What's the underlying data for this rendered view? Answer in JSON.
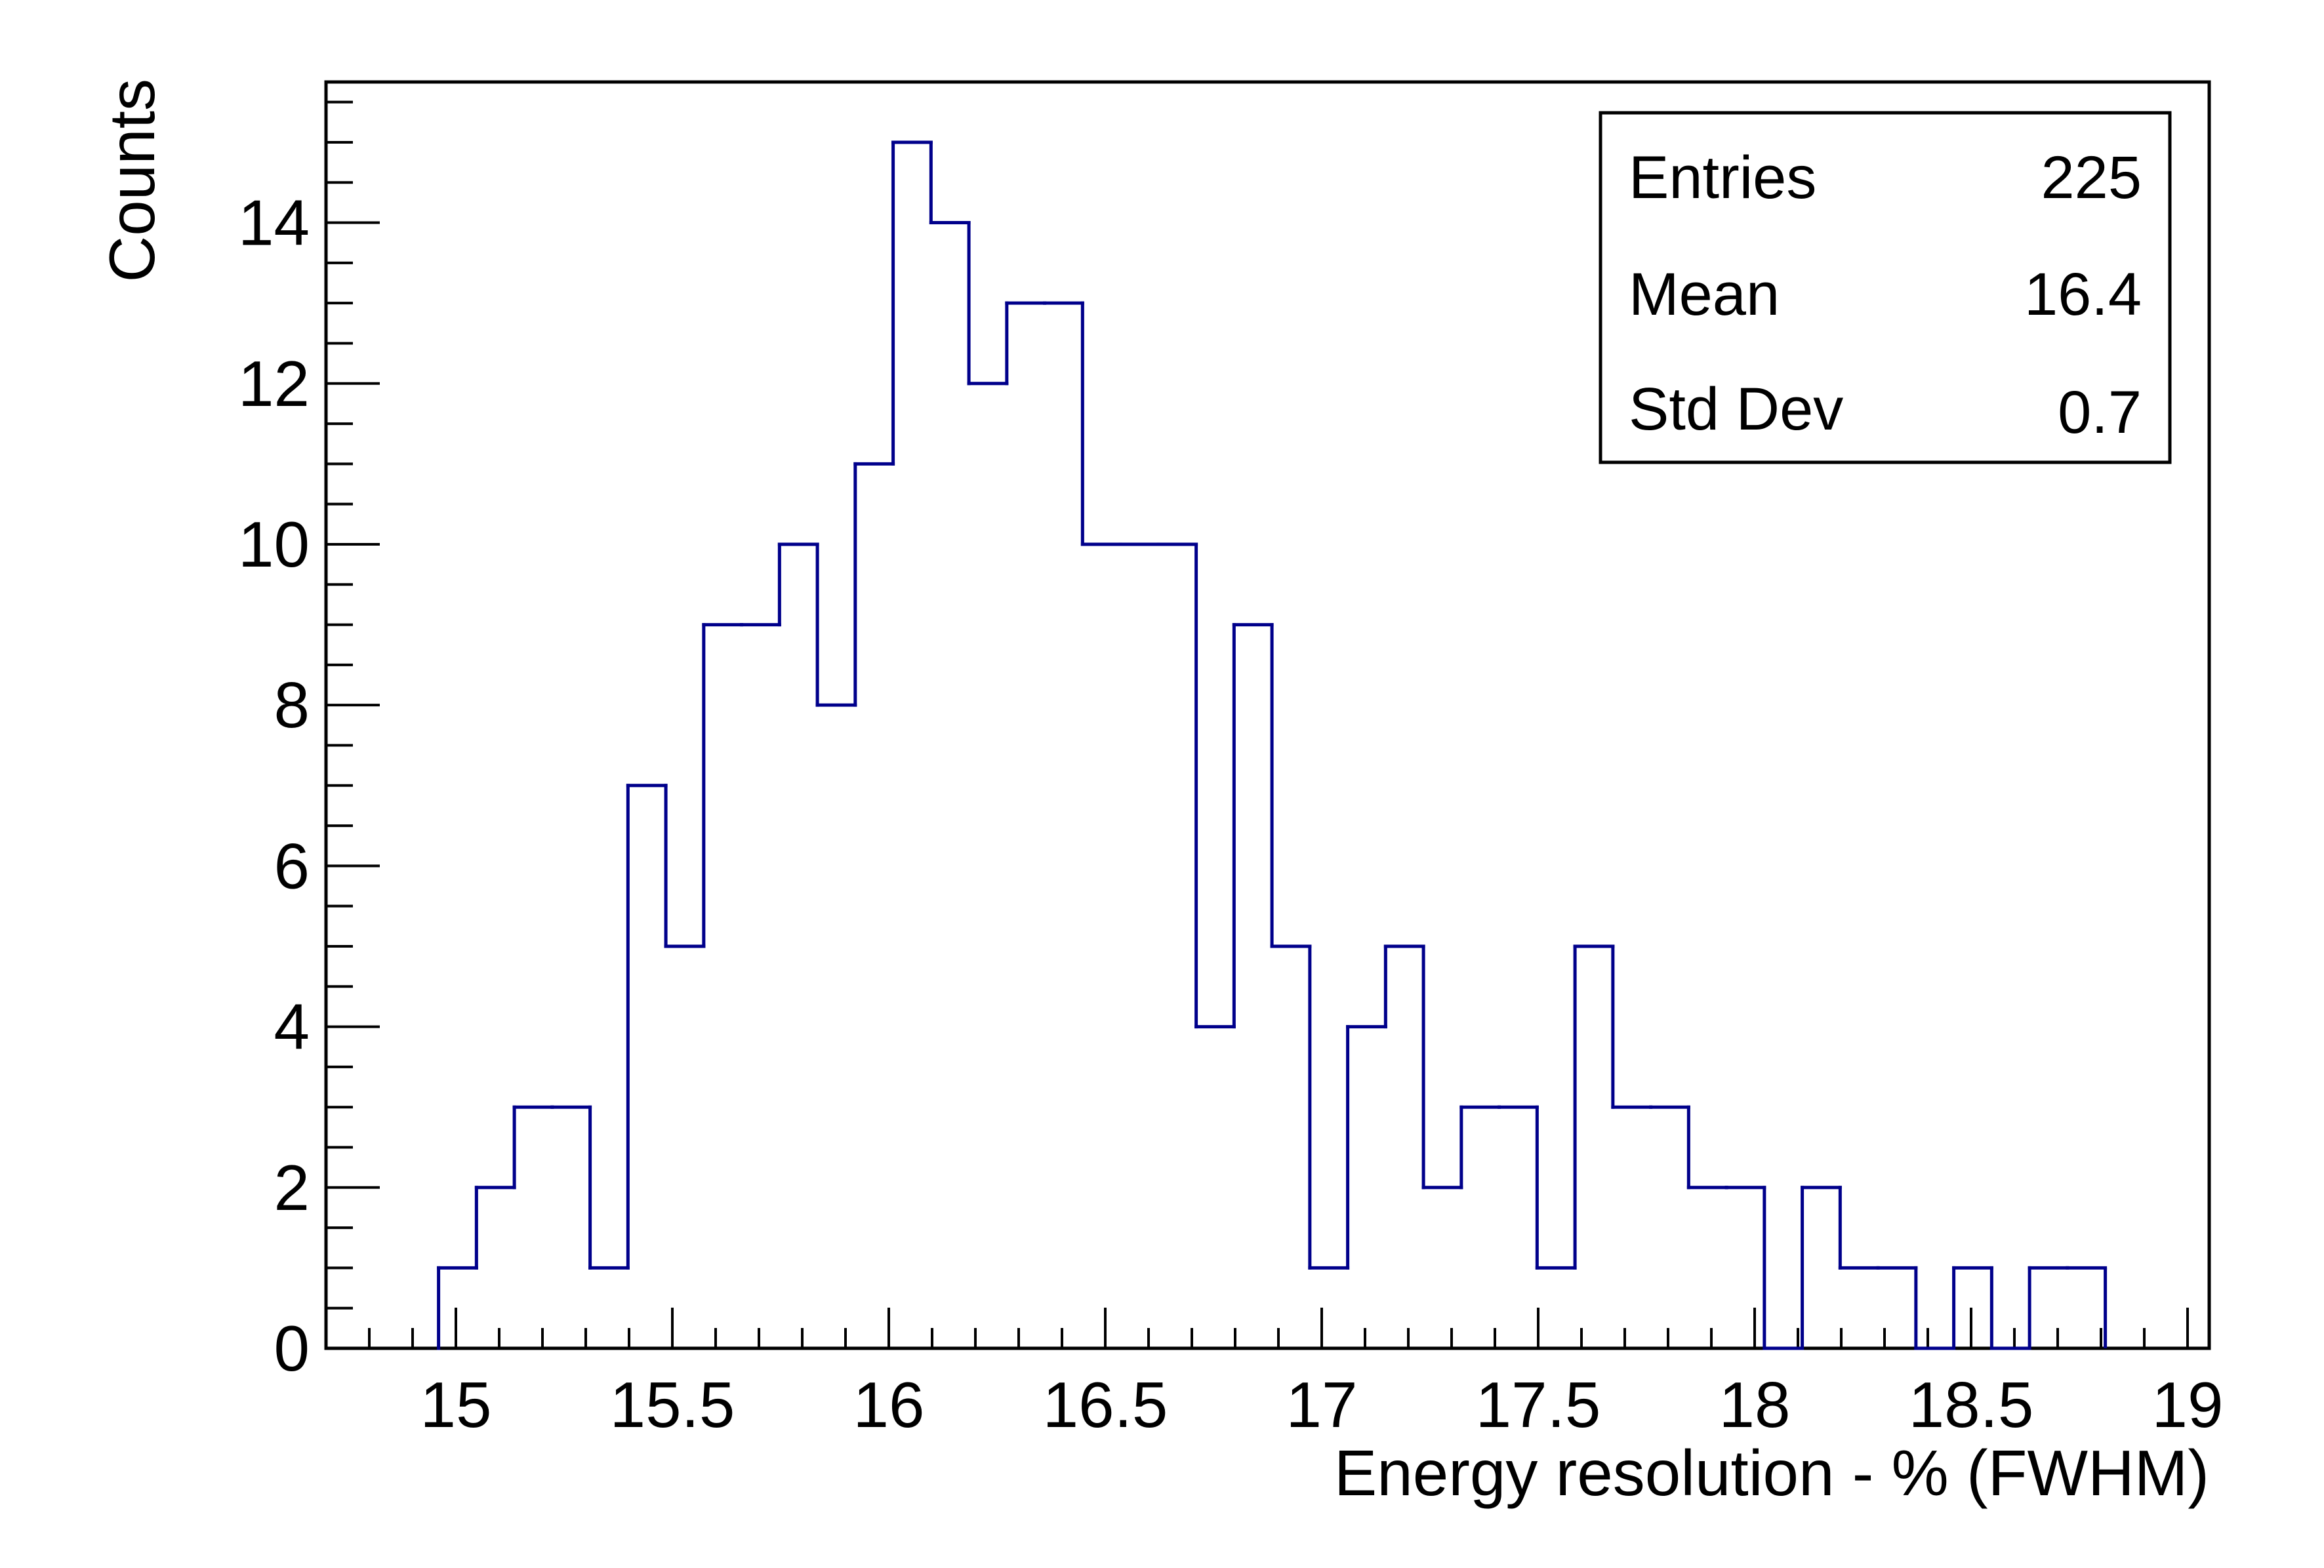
{
  "chart_data": {
    "type": "bar",
    "style": "step-histogram",
    "title": "",
    "xlabel": "Energy resolution - % (FWHM)",
    "ylabel": "Counts",
    "xlim": [
      14.7,
      19.05
    ],
    "ylim": [
      0,
      15.75
    ],
    "bin_width": 0.0875,
    "bin_edges_start": 14.96,
    "values": [
      1,
      2,
      3,
      3,
      1,
      7,
      5,
      9,
      9,
      10,
      8,
      11,
      15,
      14,
      12,
      13,
      13,
      10,
      10,
      10,
      4,
      9,
      5,
      1,
      4,
      5,
      2,
      3,
      3,
      1,
      5,
      3,
      3,
      2,
      2,
      0,
      2,
      1,
      1,
      0,
      1,
      0,
      1,
      1
    ],
    "x_ticks": [
      15,
      15.5,
      16,
      16.5,
      17,
      17.5,
      18,
      18.5,
      19
    ],
    "x_tick_labels": [
      "15",
      "15.5",
      "16",
      "16.5",
      "17",
      "17.5",
      "18",
      "18.5",
      "19"
    ],
    "y_ticks": [
      0,
      2,
      4,
      6,
      8,
      10,
      12,
      14
    ],
    "y_tick_labels": [
      "0",
      "2",
      "4",
      "6",
      "8",
      "10",
      "12",
      "14"
    ],
    "line_color": "#00008b",
    "grid": false
  },
  "stats_box": {
    "entries_label": "Entries",
    "entries_value": "225",
    "mean_label": "Mean",
    "mean_value": "16.4",
    "stddev_label": "Std Dev",
    "stddev_value": "0.7"
  }
}
